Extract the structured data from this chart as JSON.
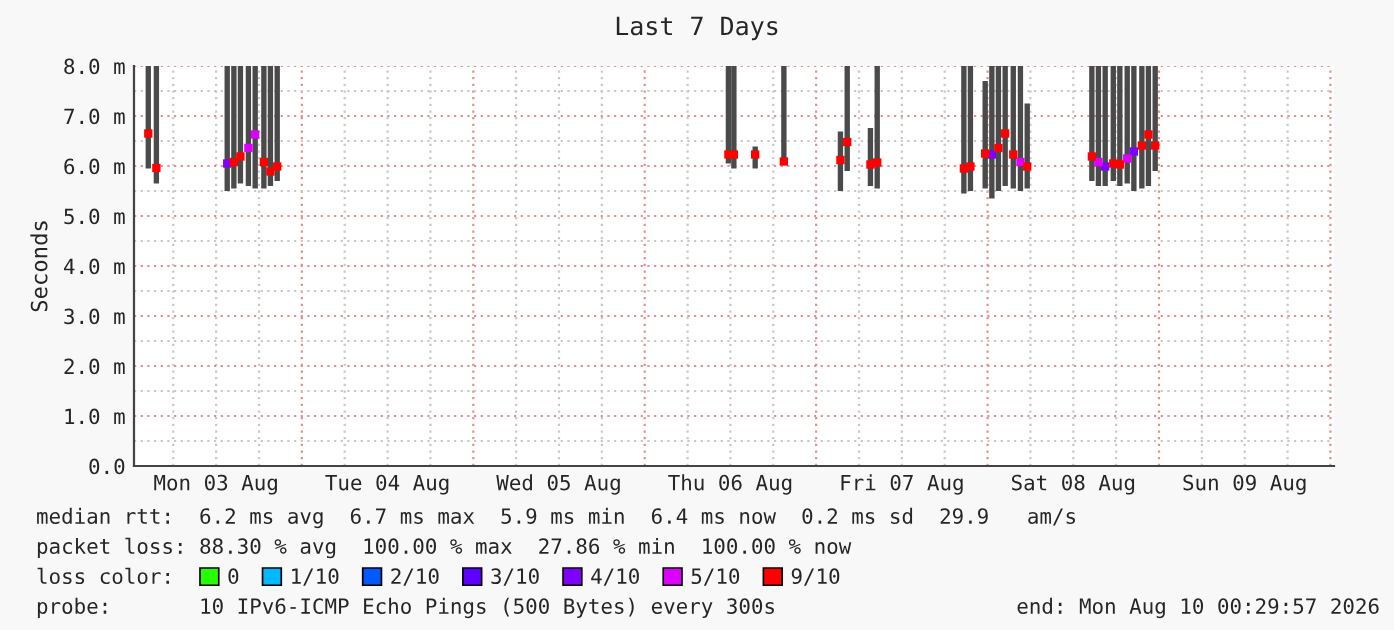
{
  "chart_data": {
    "type": "scatter",
    "title": "Last 7 Days",
    "ylabel": "Seconds",
    "legend_title": "loss color:",
    "legend": "bottom",
    "grid": true,
    "marker": "square",
    "annotations": [
      "median rtt:  6.2 ms avg  6.7 ms max  5.9 ms min  6.4 ms now  0.2 ms sd  29.9   am/s",
      "packet loss: 88.30 % avg  100.00 % max  27.86 % min  100.00 % now",
      "probe:       10 IPv6-ICMP Echo Pings (500 Bytes) every 300s",
      "end: Mon Aug 10 00:29:57 2026"
    ],
    "xlim": [
      "2026-08-03T00:30",
      "2026-08-10T00:30"
    ],
    "xticks": [
      {
        "value": "2026-08-03T06:00",
        "label": null
      },
      {
        "value": "2026-08-03T12:00",
        "label": "Mon 03 Aug"
      },
      {
        "value": "2026-08-03T18:00",
        "label": null
      },
      {
        "value": "2026-08-04T00:00",
        "label": null
      },
      {
        "value": "2026-08-04T06:00",
        "label": null
      },
      {
        "value": "2026-08-04T12:00",
        "label": "Tue 04 Aug"
      },
      {
        "value": "2026-08-04T18:00",
        "label": null
      },
      {
        "value": "2026-08-05T00:00",
        "label": null
      },
      {
        "value": "2026-08-05T06:00",
        "label": null
      },
      {
        "value": "2026-08-05T12:00",
        "label": "Wed 05 Aug"
      },
      {
        "value": "2026-08-05T18:00",
        "label": null
      },
      {
        "value": "2026-08-06T00:00",
        "label": null
      },
      {
        "value": "2026-08-06T06:00",
        "label": null
      },
      {
        "value": "2026-08-06T12:00",
        "label": "Thu 06 Aug"
      },
      {
        "value": "2026-08-06T18:00",
        "label": null
      },
      {
        "value": "2026-08-07T00:00",
        "label": null
      },
      {
        "value": "2026-08-07T06:00",
        "label": null
      },
      {
        "value": "2026-08-07T12:00",
        "label": "Fri 07 Aug"
      },
      {
        "value": "2026-08-07T18:00",
        "label": null
      },
      {
        "value": "2026-08-08T00:00",
        "label": null
      },
      {
        "value": "2026-08-08T06:00",
        "label": null
      },
      {
        "value": "2026-08-08T12:00",
        "label": "Sat 08 Aug"
      },
      {
        "value": "2026-08-08T18:00",
        "label": null
      },
      {
        "value": "2026-08-09T00:00",
        "label": null
      },
      {
        "value": "2026-08-09T06:00",
        "label": null
      },
      {
        "value": "2026-08-09T12:00",
        "label": "Sun 09 Aug"
      },
      {
        "value": "2026-08-09T18:00",
        "label": null
      },
      {
        "value": "2026-08-10T00:00",
        "label": null
      }
    ],
    "ylim": [
      0,
      8
    ],
    "yticks": [
      {
        "value": 0,
        "label": "0.0"
      },
      {
        "value": 0.5,
        "label": null
      },
      {
        "value": 1,
        "label": "1.0 m"
      },
      {
        "value": 1.5,
        "label": null
      },
      {
        "value": 2,
        "label": "2.0 m"
      },
      {
        "value": 2.5,
        "label": null
      },
      {
        "value": 3,
        "label": "3.0 m"
      },
      {
        "value": 3.5,
        "label": null
      },
      {
        "value": 4,
        "label": "4.0 m"
      },
      {
        "value": 4.5,
        "label": null
      },
      {
        "value": 5,
        "label": "5.0 m"
      },
      {
        "value": 5.5,
        "label": null
      },
      {
        "value": 6,
        "label": "6.0 m"
      },
      {
        "value": 6.5,
        "label": null
      },
      {
        "value": 7,
        "label": "7.0 m"
      },
      {
        "value": 7.5,
        "label": null
      },
      {
        "value": 8,
        "label": "8.0 m"
      }
    ],
    "series": [
      {
        "type": "bar",
        "color": "#4a4a4a",
        "x": [
          "2026-08-03T02:30",
          "2026-08-03T03:38",
          "2026-08-03T13:33",
          "2026-08-03T14:29",
          "2026-08-03T15:24",
          "2026-08-03T16:31",
          "2026-08-03T17:28",
          "2026-08-03T18:41",
          "2026-08-03T19:36",
          "2026-08-03T20:33",
          "2026-08-06T11:43",
          "2026-08-06T12:29",
          "2026-08-06T15:28",
          "2026-08-06T19:29",
          "2026-08-07T03:24",
          "2026-08-07T04:21",
          "2026-08-07T07:36",
          "2026-08-07T08:33",
          "2026-08-07T20:41",
          "2026-08-07T21:36",
          "2026-08-07T23:40",
          "2026-08-08T00:36",
          "2026-08-08T01:31",
          "2026-08-08T02:28",
          "2026-08-08T03:36",
          "2026-08-08T04:36",
          "2026-08-08T05:33",
          "2026-08-08T14:36",
          "2026-08-08T15:31",
          "2026-08-08T16:28",
          "2026-08-08T17:36",
          "2026-08-08T18:31",
          "2026-08-08T19:33",
          "2026-08-08T20:29",
          "2026-08-08T21:36",
          "2026-08-08T22:31",
          "2026-08-08T23:28"
        ],
        "base": [
          5.95,
          5.65,
          5.5,
          5.55,
          5.65,
          5.6,
          5.55,
          5.55,
          5.6,
          5.7,
          6.05,
          5.95,
          5.95,
          6.05,
          5.5,
          5.9,
          5.6,
          5.55,
          5.45,
          5.5,
          5.55,
          5.35,
          5.5,
          5.6,
          5.55,
          5.5,
          5.55,
          5.7,
          5.6,
          5.6,
          5.7,
          5.6,
          5.65,
          5.5,
          5.55,
          5.6,
          5.9
        ],
        "values": [
          2.05,
          2.35,
          2.5,
          2.45,
          2.35,
          2.4,
          2.45,
          2.45,
          2.4,
          2.3,
          1.95,
          2.05,
          0.44,
          1.95,
          1.19,
          2.1,
          1.16,
          2.45,
          2.55,
          2.5,
          2.15,
          2.65,
          2.5,
          2.4,
          2.45,
          2.5,
          1.7,
          2.3,
          2.4,
          2.4,
          2.3,
          2.4,
          2.35,
          2.5,
          2.45,
          2.4,
          2.1
        ]
      },
      {
        "name": "0",
        "color": "#26ff00"
      },
      {
        "name": "1/10",
        "color": "#00b8ff"
      },
      {
        "name": "2/10",
        "color": "#0059ff"
      },
      {
        "name": "3/10",
        "color": "#5e00ff"
      },
      {
        "name": "4/10",
        "color": "#7e00ff",
        "x": [
          "2026-08-03T13:33",
          "2026-08-08T00:36",
          "2026-08-08T16:28",
          "2026-08-08T20:29"
        ],
        "values": [
          6.05,
          6.23,
          5.99,
          6.29
        ]
      },
      {
        "name": "5/10",
        "color": "#dd00ff",
        "x": [
          "2026-08-03T16:31",
          "2026-08-03T17:28",
          "2026-08-08T04:36",
          "2026-08-08T15:31",
          "2026-08-08T19:33"
        ],
        "values": [
          6.36,
          6.63,
          6.08,
          6.08,
          6.15
        ]
      },
      {
        "name": "9/10",
        "color": "#ff0000",
        "x": [
          "2026-08-03T02:30",
          "2026-08-03T03:38",
          "2026-08-03T14:29",
          "2026-08-03T15:24",
          "2026-08-03T18:41",
          "2026-08-03T19:36",
          "2026-08-03T20:33",
          "2026-08-06T11:43",
          "2026-08-06T12:29",
          "2026-08-06T15:28",
          "2026-08-06T19:29",
          "2026-08-07T03:24",
          "2026-08-07T04:21",
          "2026-08-07T07:36",
          "2026-08-07T08:33",
          "2026-08-07T20:41",
          "2026-08-07T21:36",
          "2026-08-07T23:40",
          "2026-08-08T01:31",
          "2026-08-08T02:28",
          "2026-08-08T03:36",
          "2026-08-08T05:33",
          "2026-08-08T14:36",
          "2026-08-08T17:36",
          "2026-08-08T18:31",
          "2026-08-08T21:36",
          "2026-08-08T22:31",
          "2026-08-08T23:28"
        ],
        "values": [
          6.65,
          5.96,
          6.08,
          6.19,
          6.08,
          5.89,
          5.99,
          6.23,
          6.23,
          6.23,
          6.09,
          6.12,
          6.48,
          6.03,
          6.07,
          5.95,
          5.99,
          6.25,
          6.36,
          6.65,
          6.23,
          5.99,
          6.19,
          6.05,
          6.03,
          6.41,
          6.63,
          6.41
        ]
      }
    ]
  }
}
